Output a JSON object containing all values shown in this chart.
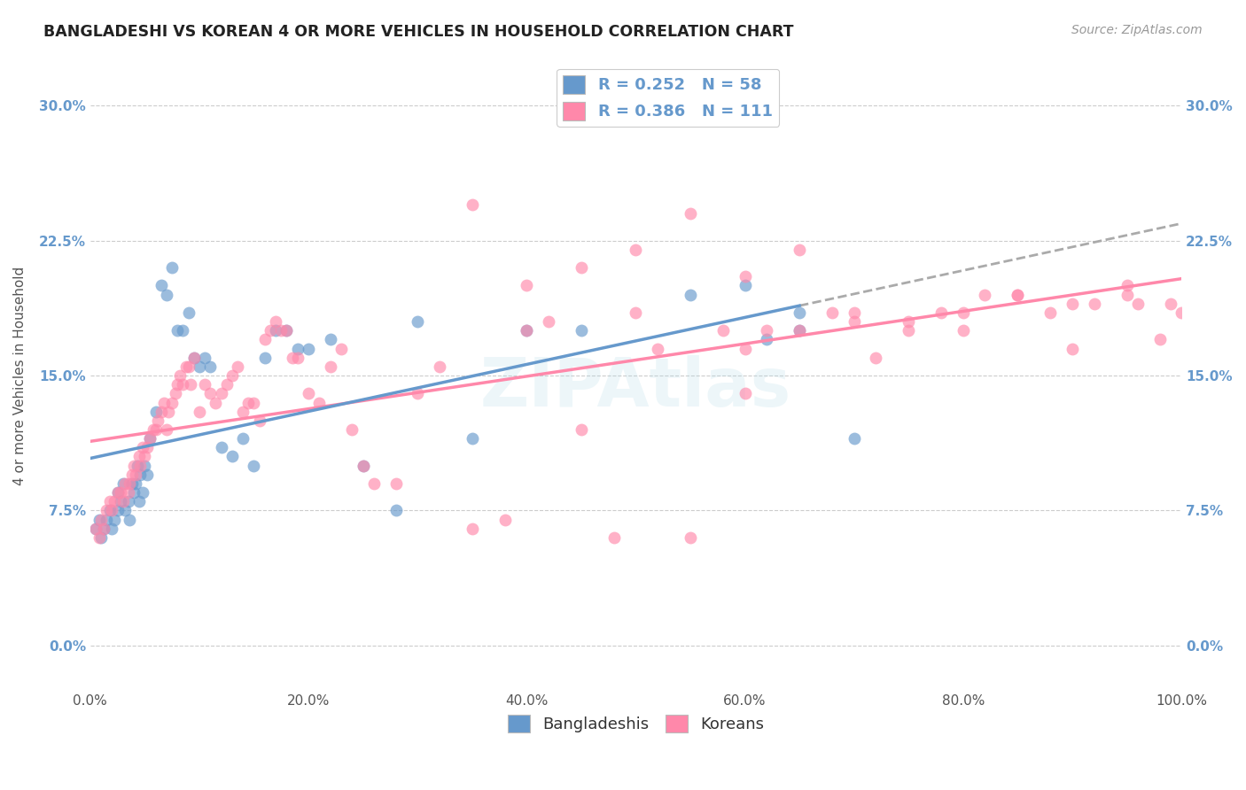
{
  "title": "BANGLADESHI VS KOREAN 4 OR MORE VEHICLES IN HOUSEHOLD CORRELATION CHART",
  "source": "Source: ZipAtlas.com",
  "ylabel": "4 or more Vehicles in Household",
  "xlim": [
    0,
    1.0
  ],
  "ylim": [
    -0.025,
    0.325
  ],
  "xticks": [
    0.0,
    0.2,
    0.4,
    0.6,
    0.8,
    1.0
  ],
  "xtick_labels": [
    "0.0%",
    "20.0%",
    "40.0%",
    "60.0%",
    "80.0%",
    "100.0%"
  ],
  "yticks": [
    0.0,
    0.075,
    0.15,
    0.225,
    0.3
  ],
  "ytick_labels": [
    "0.0%",
    "7.5%",
    "15.0%",
    "22.5%",
    "30.0%"
  ],
  "blue_color": "#6699CC",
  "pink_color": "#FF88AA",
  "blue_R": 0.252,
  "blue_N": 58,
  "pink_R": 0.386,
  "pink_N": 111,
  "legend_labels": [
    "Bangladeshis",
    "Koreans"
  ],
  "watermark": "ZIPAtlas",
  "blue_scatter_x": [
    0.005,
    0.008,
    0.01,
    0.012,
    0.015,
    0.018,
    0.02,
    0.022,
    0.025,
    0.025,
    0.028,
    0.03,
    0.032,
    0.035,
    0.036,
    0.038,
    0.04,
    0.042,
    0.043,
    0.045,
    0.046,
    0.048,
    0.05,
    0.052,
    0.055,
    0.06,
    0.065,
    0.07,
    0.075,
    0.08,
    0.085,
    0.09,
    0.095,
    0.1,
    0.105,
    0.11,
    0.12,
    0.13,
    0.14,
    0.15,
    0.16,
    0.17,
    0.18,
    0.19,
    0.2,
    0.22,
    0.25,
    0.28,
    0.3,
    0.35,
    0.4,
    0.45,
    0.55,
    0.6,
    0.62,
    0.65,
    0.65,
    0.7
  ],
  "blue_scatter_y": [
    0.065,
    0.07,
    0.06,
    0.065,
    0.07,
    0.075,
    0.065,
    0.07,
    0.075,
    0.085,
    0.08,
    0.09,
    0.075,
    0.08,
    0.07,
    0.09,
    0.085,
    0.09,
    0.1,
    0.08,
    0.095,
    0.085,
    0.1,
    0.095,
    0.115,
    0.13,
    0.2,
    0.195,
    0.21,
    0.175,
    0.175,
    0.185,
    0.16,
    0.155,
    0.16,
    0.155,
    0.11,
    0.105,
    0.115,
    0.1,
    0.16,
    0.175,
    0.175,
    0.165,
    0.165,
    0.17,
    0.1,
    0.075,
    0.18,
    0.115,
    0.175,
    0.175,
    0.195,
    0.2,
    0.17,
    0.175,
    0.185,
    0.115
  ],
  "pink_scatter_x": [
    0.005,
    0.008,
    0.01,
    0.012,
    0.015,
    0.018,
    0.02,
    0.022,
    0.025,
    0.028,
    0.03,
    0.032,
    0.035,
    0.036,
    0.038,
    0.04,
    0.042,
    0.045,
    0.046,
    0.048,
    0.05,
    0.052,
    0.055,
    0.058,
    0.06,
    0.062,
    0.065,
    0.068,
    0.07,
    0.072,
    0.075,
    0.078,
    0.08,
    0.082,
    0.085,
    0.088,
    0.09,
    0.092,
    0.095,
    0.1,
    0.105,
    0.11,
    0.115,
    0.12,
    0.125,
    0.13,
    0.135,
    0.14,
    0.145,
    0.15,
    0.155,
    0.16,
    0.165,
    0.17,
    0.175,
    0.18,
    0.185,
    0.19,
    0.2,
    0.21,
    0.22,
    0.23,
    0.24,
    0.25,
    0.26,
    0.28,
    0.3,
    0.32,
    0.35,
    0.38,
    0.4,
    0.42,
    0.45,
    0.48,
    0.5,
    0.52,
    0.55,
    0.58,
    0.6,
    0.6,
    0.62,
    0.65,
    0.68,
    0.7,
    0.72,
    0.75,
    0.78,
    0.8,
    0.82,
    0.85,
    0.88,
    0.9,
    0.92,
    0.95,
    0.96,
    0.98,
    0.99,
    1.0,
    0.5,
    0.55,
    0.6,
    0.65,
    0.7,
    0.75,
    0.8,
    0.85,
    0.9,
    0.95,
    0.35,
    0.4,
    0.45
  ],
  "pink_scatter_y": [
    0.065,
    0.06,
    0.07,
    0.065,
    0.075,
    0.08,
    0.075,
    0.08,
    0.085,
    0.085,
    0.08,
    0.09,
    0.085,
    0.09,
    0.095,
    0.1,
    0.095,
    0.105,
    0.1,
    0.11,
    0.105,
    0.11,
    0.115,
    0.12,
    0.12,
    0.125,
    0.13,
    0.135,
    0.12,
    0.13,
    0.135,
    0.14,
    0.145,
    0.15,
    0.145,
    0.155,
    0.155,
    0.145,
    0.16,
    0.13,
    0.145,
    0.14,
    0.135,
    0.14,
    0.145,
    0.15,
    0.155,
    0.13,
    0.135,
    0.135,
    0.125,
    0.17,
    0.175,
    0.18,
    0.175,
    0.175,
    0.16,
    0.16,
    0.14,
    0.135,
    0.155,
    0.165,
    0.12,
    0.1,
    0.09,
    0.09,
    0.14,
    0.155,
    0.065,
    0.07,
    0.175,
    0.18,
    0.12,
    0.06,
    0.185,
    0.165,
    0.06,
    0.175,
    0.165,
    0.14,
    0.175,
    0.175,
    0.185,
    0.185,
    0.16,
    0.175,
    0.185,
    0.185,
    0.195,
    0.195,
    0.185,
    0.19,
    0.19,
    0.195,
    0.19,
    0.17,
    0.19,
    0.185,
    0.22,
    0.24,
    0.205,
    0.22,
    0.18,
    0.18,
    0.175,
    0.195,
    0.165,
    0.2,
    0.245,
    0.2,
    0.21
  ]
}
